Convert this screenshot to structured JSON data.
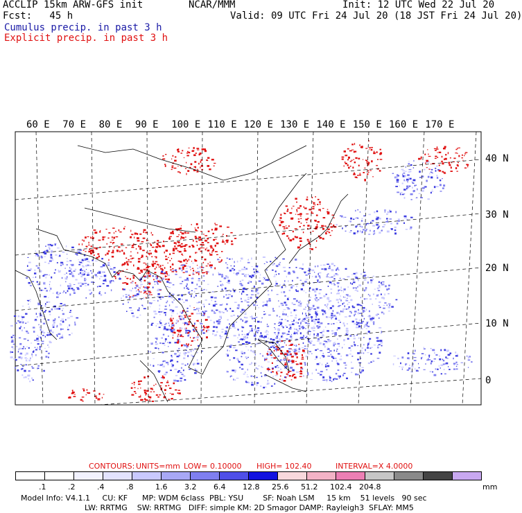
{
  "header": {
    "title_left": "ACCLIP 15km ARW-GFS init",
    "center": "NCAR/MMM",
    "init": "Init: 12 UTC Wed 22 Jul 20",
    "fcst": "Fcst:   45 h",
    "valid": "Valid: 09 UTC Fri 24 Jul 20 (18 JST Fri 24 Jul 20)",
    "cumulus": "Cumulus precip. in past 3 h",
    "explicit": "Explicit precip. in past 3 h"
  },
  "map": {
    "lon_labels": [
      "60 E",
      "70 E",
      "80 E",
      "90 E",
      "100 E",
      "110 E",
      "120 E",
      "130 E",
      "140 E",
      "150 E",
      "160 E",
      "170 E"
    ],
    "lat_labels": [
      "40 N",
      "30 N",
      "20 N",
      "10 N",
      "0"
    ]
  },
  "contours": {
    "label": "CONTOURS:",
    "units": "UNITS=mm",
    "low": "LOW= 0.10000",
    "high": "HIGH= 102.40",
    "interval": "INTERVAL=X 4.0000"
  },
  "colorbar": {
    "colors": [
      "#ffffff",
      "#ffffff",
      "#f2f2ff",
      "#e3e3ff",
      "#c9c9ff",
      "#a8a8f5",
      "#7f7ff0",
      "#4f4fe8",
      "#1212e0",
      "#f8d8dc",
      "#f3b3c6",
      "#ec7fb4",
      "#c6c6c6",
      "#8a8a8a",
      "#444444",
      "#c8a8f0"
    ],
    "ticks": [
      ".1",
      ".2",
      ".4",
      ".8",
      "1.6",
      "3.2",
      "6.4",
      "12.8",
      "25.6",
      "51.2",
      "102.4",
      "204.8"
    ],
    "unit": "mm"
  },
  "footer": {
    "line1": "Model Info: V4.1.1     CU: KF      MP: WDM 6class  PBL: YSU        SF: Noah LSM     15 km    51 levels   90 sec",
    "line2": "LW: RRTMG    SW: RRTMG   DIFF: simple KM: 2D Smagor DAMP: Rayleigh3  SFLAY: MM5"
  }
}
